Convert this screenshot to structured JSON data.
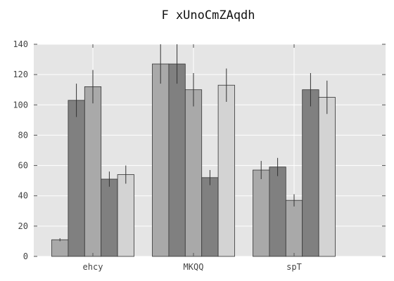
{
  "chart_data": {
    "type": "bar",
    "title": "F xUnoCmZAqdh",
    "xlabel": "",
    "ylabel": "",
    "categories": [
      "ehcy",
      "MKQQ",
      "spT"
    ],
    "ylim": [
      0,
      140
    ],
    "yticks": [
      0,
      20,
      40,
      60,
      80,
      100,
      120,
      140
    ],
    "grid": true,
    "legend": "none",
    "colors": {
      "background": "#e5e5e5",
      "grid": "#ffffff",
      "edge": "#333333",
      "errorbar": "#333333",
      "series": [
        "#a9a9a9",
        "#808080",
        "#a9a9a9",
        "#808080",
        "#d3d3d3"
      ]
    },
    "series": [
      {
        "values": [
          11,
          127,
          57
        ],
        "errors": [
          1,
          13,
          6
        ]
      },
      {
        "values": [
          103,
          127,
          59
        ],
        "errors": [
          11,
          13,
          6
        ]
      },
      {
        "values": [
          112,
          110,
          37
        ],
        "errors": [
          11,
          11,
          4
        ]
      },
      {
        "values": [
          51,
          52,
          110
        ],
        "errors": [
          5,
          5,
          11
        ]
      },
      {
        "values": [
          54,
          113,
          105
        ],
        "errors": [
          6,
          11,
          11
        ]
      }
    ]
  }
}
